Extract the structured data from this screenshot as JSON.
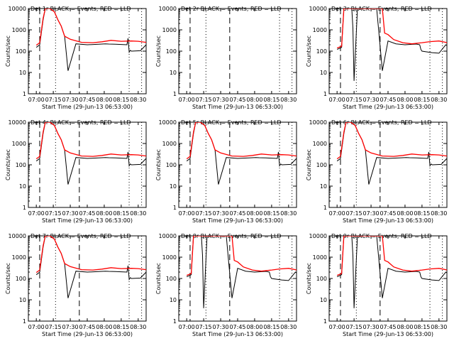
{
  "chart_data": {
    "type": "line",
    "layout": "3x3 grid",
    "shared_xlabel": "Start Time (29-Jun-13 06:53:00)",
    "shared_ylabel": "Counts/sec",
    "x_tick_labels": [
      "07:00",
      "07:15",
      "07:30",
      "07:45",
      "08:00",
      "08:15",
      "08:30"
    ],
    "y_tick_labels": [
      "1",
      "10",
      "100",
      "1000",
      "10000"
    ],
    "yscale": "log",
    "ylim": [
      1,
      10000
    ],
    "colors": {
      "events": "#000000",
      "lld": "#ff0000"
    },
    "panels": [
      {
        "title": "Det 1r  BLACK = Events, RED = LLD",
        "series": [
          {
            "name": "BLACK = Events",
            "x": [
              0,
              3,
              6,
              8,
              12,
              16,
              19,
              22,
              25,
              28,
              35,
              45,
              55,
              61,
              64,
              70,
              75,
              80,
              81,
              82,
              83,
              84,
              92,
              97,
              102
            ],
            "y": [
              150,
              200,
              3000,
              10000,
              10000,
              7000,
              3000,
              1500,
              500,
              12,
              220,
              200,
              210,
              220,
              215,
              210,
              205,
              200,
              400,
              90,
              110,
              100,
              105,
              200,
              140
            ]
          },
          {
            "name": "RED = LLD",
            "x": [
              0,
              3,
              6,
              8,
              12,
              16,
              19,
              22,
              25,
              30,
              40,
              50,
              58,
              66,
              75,
              84,
              90,
              97,
              102
            ],
            "y": [
              190,
              250,
              3500,
              10000,
              10000,
              7000,
              3000,
              1500,
              500,
              360,
              260,
              250,
              275,
              320,
              290,
              300,
              290,
              260,
              220
            ]
          }
        ]
      },
      {
        "title": "Det 2r  BLACK = Events, RED = LLD",
        "series": []
      },
      {
        "title": "Det 3r  BLACK = Events, RED = LLD",
        "series": [
          {
            "name": "BLACK = Events",
            "x": [
              0,
              4,
              5,
              6,
              8,
              11,
              13,
              14,
              15,
              18,
              20,
              25,
              30,
              35,
              40,
              45,
              52,
              60,
              70,
              73,
              74,
              75,
              78,
              84,
              90,
              96,
              100
            ],
            "y": [
              120,
              150,
              1500,
              10000,
              10000,
              10000,
              10000,
              1200,
              4,
              10000,
              10000,
              10000,
              10000,
              10000,
              12,
              300,
              220,
              200,
              215,
              200,
              120,
              100,
              95,
              85,
              80,
              200,
              140
            ]
          },
          {
            "name": "RED = LLD",
            "x": [
              0,
              4,
              6,
              8,
              40,
              42,
              45,
              50,
              58,
              66,
              75,
              82,
              90,
              96,
              100
            ],
            "y": [
              140,
              170,
              10000,
              10000,
              10000,
              700,
              600,
              350,
              250,
              220,
              250,
              280,
              300,
              260,
              220
            ]
          }
        ]
      },
      {
        "title": "Det 4r  BLACK = Events, RED = LLD",
        "series": [
          {
            "name": "BLACK = Events",
            "x": [
              0,
              3,
              6,
              8,
              12,
              16,
              19,
              22,
              25,
              28,
              35,
              45,
              55,
              61,
              64,
              70,
              75,
              80,
              81,
              82,
              83,
              84,
              92,
              97,
              102
            ],
            "y": [
              150,
              200,
              3000,
              10000,
              10000,
              7000,
              3000,
              1500,
              500,
              12,
              220,
              200,
              210,
              220,
              215,
              210,
              205,
              200,
              400,
              90,
              110,
              100,
              105,
              200,
              140
            ]
          },
          {
            "name": "RED = LLD",
            "x": [
              0,
              3,
              6,
              8,
              12,
              16,
              19,
              22,
              25,
              30,
              40,
              50,
              58,
              66,
              75,
              84,
              90,
              97,
              102
            ],
            "y": [
              190,
              250,
              3500,
              10000,
              10000,
              7000,
              3000,
              1500,
              500,
              360,
              260,
              250,
              275,
              320,
              290,
              300,
              290,
              260,
              220
            ]
          }
        ]
      },
      {
        "title": "Det 5r  BLACK = Events, RED = LLD",
        "series": [
          {
            "name": "BLACK = Events",
            "x": [
              0,
              3,
              6,
              8,
              12,
              16,
              19,
              22,
              25,
              28,
              35,
              45,
              55,
              61,
              64,
              70,
              75,
              80,
              81,
              82,
              83,
              84,
              92,
              97,
              102
            ],
            "y": [
              150,
              200,
              3000,
              10000,
              10000,
              7000,
              3000,
              1500,
              500,
              12,
              220,
              200,
              210,
              220,
              215,
              210,
              205,
              200,
              400,
              90,
              110,
              100,
              105,
              200,
              140
            ]
          },
          {
            "name": "RED = LLD",
            "x": [
              0,
              3,
              6,
              8,
              12,
              16,
              19,
              22,
              25,
              30,
              40,
              50,
              58,
              66,
              75,
              84,
              90,
              97,
              102
            ],
            "y": [
              190,
              250,
              3500,
              10000,
              10000,
              7000,
              3000,
              1500,
              500,
              360,
              260,
              250,
              275,
              320,
              290,
              300,
              290,
              260,
              220
            ]
          }
        ]
      },
      {
        "title": "Det 6r  BLACK = Events, RED = LLD",
        "series": [
          {
            "name": "BLACK = Events",
            "x": [
              0,
              3,
              6,
              8,
              12,
              16,
              19,
              22,
              25,
              28,
              35,
              45,
              55,
              61,
              64,
              70,
              75,
              80,
              81,
              82,
              83,
              84,
              92,
              97,
              102
            ],
            "y": [
              150,
              200,
              3000,
              10000,
              10000,
              7000,
              3000,
              1500,
              500,
              12,
              220,
              200,
              210,
              220,
              215,
              210,
              205,
              200,
              400,
              90,
              110,
              100,
              105,
              200,
              140
            ]
          },
          {
            "name": "RED = LLD",
            "x": [
              0,
              3,
              6,
              8,
              12,
              16,
              19,
              22,
              25,
              30,
              40,
              50,
              58,
              66,
              75,
              84,
              90,
              97,
              102
            ],
            "y": [
              190,
              250,
              3500,
              10000,
              10000,
              7000,
              3000,
              1500,
              500,
              360,
              260,
              250,
              275,
              320,
              290,
              300,
              290,
              260,
              220
            ]
          }
        ]
      },
      {
        "title": "Det 7r  BLACK = Events, RED = LLD",
        "series": [
          {
            "name": "BLACK = Events",
            "x": [
              0,
              3,
              6,
              8,
              12,
              16,
              19,
              22,
              25,
              28,
              35,
              45,
              55,
              61,
              64,
              70,
              75,
              80,
              81,
              82,
              83,
              84,
              92,
              97,
              102
            ],
            "y": [
              150,
              200,
              3000,
              10000,
              10000,
              7000,
              3000,
              1500,
              500,
              12,
              220,
              200,
              210,
              220,
              215,
              210,
              205,
              200,
              400,
              90,
              110,
              100,
              105,
              200,
              140
            ]
          },
          {
            "name": "RED = LLD",
            "x": [
              0,
              3,
              6,
              8,
              12,
              16,
              19,
              22,
              25,
              30,
              40,
              50,
              58,
              66,
              75,
              84,
              90,
              97,
              102
            ],
            "y": [
              190,
              250,
              3500,
              10000,
              10000,
              7000,
              3000,
              1500,
              500,
              360,
              260,
              250,
              275,
              320,
              290,
              300,
              290,
              260,
              220
            ]
          }
        ]
      },
      {
        "title": "Det 8r  BLACK = Events, RED = LLD",
        "series": [
          {
            "name": "BLACK = Events",
            "x": [
              0,
              4,
              5,
              6,
              8,
              11,
              13,
              14,
              15,
              18,
              20,
              25,
              30,
              35,
              40,
              45,
              52,
              60,
              70,
              73,
              74,
              75,
              78,
              84,
              90,
              96,
              100
            ],
            "y": [
              120,
              150,
              1500,
              10000,
              10000,
              10000,
              10000,
              1200,
              4,
              10000,
              10000,
              10000,
              10000,
              10000,
              12,
              300,
              220,
              200,
              215,
              200,
              120,
              100,
              95,
              85,
              80,
              200,
              140
            ]
          },
          {
            "name": "RED = LLD",
            "x": [
              0,
              4,
              6,
              8,
              40,
              42,
              45,
              50,
              58,
              66,
              75,
              82,
              90,
              96,
              100
            ],
            "y": [
              140,
              170,
              10000,
              10000,
              10000,
              700,
              600,
              350,
              250,
              220,
              250,
              280,
              300,
              260,
              220
            ]
          }
        ]
      },
      {
        "title": "Det 9r  BLACK = Events, RED = LLD",
        "series": [
          {
            "name": "BLACK = Events",
            "x": [
              0,
              4,
              5,
              6,
              8,
              11,
              13,
              14,
              15,
              18,
              20,
              25,
              30,
              35,
              40,
              45,
              52,
              60,
              70,
              73,
              74,
              75,
              78,
              84,
              90,
              96,
              100
            ],
            "y": [
              120,
              150,
              1500,
              10000,
              10000,
              10000,
              10000,
              1200,
              4,
              10000,
              10000,
              10000,
              10000,
              10000,
              12,
              300,
              220,
              200,
              215,
              200,
              120,
              100,
              95,
              85,
              80,
              200,
              140
            ]
          },
          {
            "name": "RED = LLD",
            "x": [
              0,
              4,
              6,
              8,
              40,
              42,
              45,
              50,
              58,
              66,
              75,
              82,
              90,
              96,
              100
            ],
            "y": [
              140,
              170,
              10000,
              10000,
              10000,
              700,
              600,
              350,
              250,
              220,
              250,
              280,
              300,
              260,
              220
            ]
          }
        ]
      }
    ],
    "vertical_markers": [
      {
        "x": 3,
        "style": "dashed"
      },
      {
        "x": 17,
        "style": "dotted"
      },
      {
        "x": 38,
        "style": "dashed"
      },
      {
        "x": 82,
        "style": "dotted"
      },
      {
        "x": 93,
        "style": "dotted"
      }
    ]
  }
}
